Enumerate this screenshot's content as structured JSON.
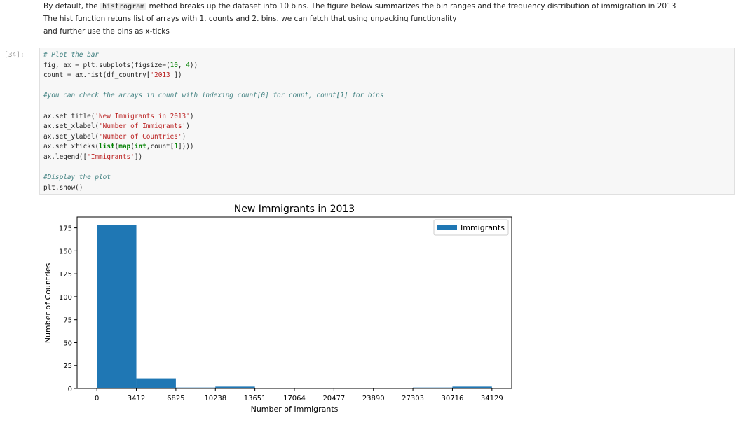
{
  "markdown": {
    "line1_pre": "By default, the ",
    "line1_code": "histrogram",
    "line1_post": " method breaks up the dataset into 10 bins. The figure below summarizes the bin ranges and the frequency distribution of immigration in 2013",
    "line2": "The hist function retuns list of arrays with 1. counts and 2. bins. we can fetch that using unpacking functionality",
    "line3": "and further use the bins as x-ticks"
  },
  "cell": {
    "prompt": "[34]:",
    "lines": [
      [
        {
          "t": "# Plot the bar",
          "c": "cm"
        }
      ],
      [
        {
          "t": "fig, ax = plt.subplots(figsize=(",
          "c": ""
        },
        {
          "t": "10",
          "c": "nm"
        },
        {
          "t": ", ",
          "c": ""
        },
        {
          "t": "4",
          "c": "nm"
        },
        {
          "t": "))",
          "c": ""
        }
      ],
      [
        {
          "t": "count = ax.hist(df_country[",
          "c": ""
        },
        {
          "t": "'2013'",
          "c": "st"
        },
        {
          "t": "])",
          "c": ""
        }
      ],
      [],
      [
        {
          "t": "#you can check the arrays in count with indexing count[0] for count, count[1] for bins",
          "c": "cm"
        }
      ],
      [],
      [
        {
          "t": "ax.set_title(",
          "c": ""
        },
        {
          "t": "'New Immigrants in 2013'",
          "c": "st"
        },
        {
          "t": ")",
          "c": ""
        }
      ],
      [
        {
          "t": "ax.set_xlabel(",
          "c": ""
        },
        {
          "t": "'Number of Immigrants'",
          "c": "st"
        },
        {
          "t": ")",
          "c": ""
        }
      ],
      [
        {
          "t": "ax.set_ylabel(",
          "c": ""
        },
        {
          "t": "'Number of Countries'",
          "c": "st"
        },
        {
          "t": ")",
          "c": ""
        }
      ],
      [
        {
          "t": "ax.set_xticks(",
          "c": ""
        },
        {
          "t": "list",
          "c": "k"
        },
        {
          "t": "(",
          "c": ""
        },
        {
          "t": "map",
          "c": "k"
        },
        {
          "t": "(",
          "c": ""
        },
        {
          "t": "int",
          "c": "k"
        },
        {
          "t": ",count[",
          "c": ""
        },
        {
          "t": "1",
          "c": "nm"
        },
        {
          "t": "])))",
          "c": ""
        }
      ],
      [
        {
          "t": "ax.legend([",
          "c": ""
        },
        {
          "t": "'Immigrants'",
          "c": "st"
        },
        {
          "t": "])",
          "c": ""
        }
      ],
      [],
      [
        {
          "t": "#Display the plot",
          "c": "cm"
        }
      ],
      [
        {
          "t": "plt.show()",
          "c": ""
        }
      ]
    ]
  },
  "colors": {
    "bar": "#1f77b4"
  },
  "chart_data": {
    "type": "bar",
    "title": "New Immigrants in 2013",
    "xlabel": "Number of Immigrants",
    "ylabel": "Number of Countries",
    "bin_edges": [
      0,
      3412,
      6825,
      10238,
      13651,
      17064,
      20477,
      23890,
      27303,
      30716,
      34129
    ],
    "counts": [
      178,
      11,
      1,
      2,
      0,
      0,
      0,
      0,
      1,
      2
    ],
    "xticks": [
      "0",
      "3412",
      "6825",
      "10238",
      "13651",
      "17064",
      "20477",
      "23890",
      "27303",
      "30716",
      "34129"
    ],
    "yticks": [
      0,
      25,
      50,
      75,
      100,
      125,
      150,
      175
    ],
    "ylim": [
      0,
      186.9
    ],
    "legend": [
      "Immigrants"
    ],
    "legend_position": "top-right",
    "grid": false
  }
}
